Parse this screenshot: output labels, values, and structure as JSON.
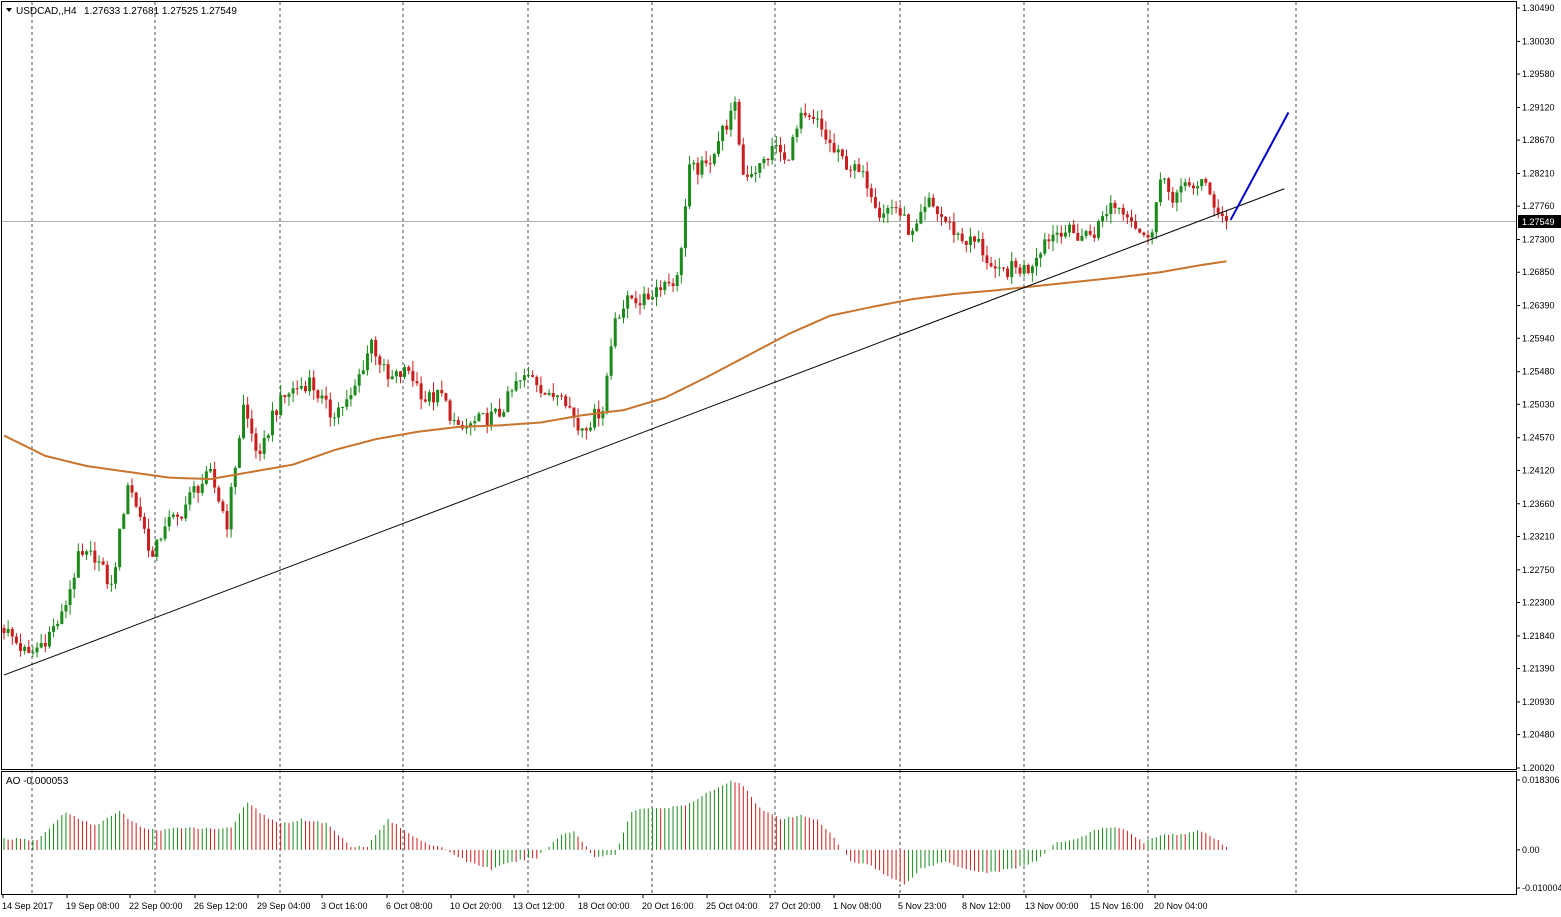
{
  "header": {
    "menu_icon": "triangle-down-icon",
    "symbol": "USDCAD,,H4",
    "ohlc": "1.27633 1.27681 1.27525 1.27549"
  },
  "chart_data": {
    "type": "candlestick",
    "symbol": "USDCAD",
    "timeframe": "H4",
    "ylim": [
      1.2002,
      1.3049
    ],
    "y_ticks": [
      "1.30490",
      "1.30030",
      "1.29580",
      "1.29120",
      "1.28670",
      "1.28210",
      "1.27760",
      "1.27300",
      "1.26850",
      "1.26390",
      "1.25940",
      "1.25480",
      "1.25030",
      "1.24570",
      "1.24120",
      "1.23660",
      "1.23210",
      "1.22750",
      "1.22300",
      "1.21840",
      "1.21390",
      "1.20930",
      "1.20480",
      "1.20020"
    ],
    "x_ticks": [
      "14 Sep 2017",
      "19 Sep 08:00",
      "22 Sep 00:00",
      "26 Sep 12:00",
      "29 Sep 04:00",
      "3 Oct 16:00",
      "6 Oct 08:00",
      "10 Oct 20:00",
      "13 Oct 12:00",
      "18 Oct 00:00",
      "20 Oct 16:00",
      "25 Oct 04:00",
      "27 Oct 20:00",
      "1 Nov 08:00",
      "5 Nov 23:00",
      "8 Nov 12:00",
      "13 Nov 00:00",
      "15 Nov 16:00",
      "20 Nov 04:00"
    ],
    "current_price": "1.27549",
    "close_anchors": [
      [
        0,
        1.2195
      ],
      [
        6,
        1.2155
      ],
      [
        10,
        1.218
      ],
      [
        14,
        1.221
      ],
      [
        18,
        1.229
      ],
      [
        22,
        1.2295
      ],
      [
        26,
        1.225
      ],
      [
        30,
        1.2395
      ],
      [
        33,
        1.235
      ],
      [
        36,
        1.229
      ],
      [
        39,
        1.234
      ],
      [
        42,
        1.2345
      ],
      [
        46,
        1.2385
      ],
      [
        50,
        1.2405
      ],
      [
        54,
        1.234
      ],
      [
        58,
        1.25
      ],
      [
        62,
        1.2425
      ],
      [
        65,
        1.249
      ],
      [
        69,
        1.252
      ],
      [
        74,
        1.2535
      ],
      [
        79,
        1.249
      ],
      [
        84,
        1.251
      ],
      [
        89,
        1.259
      ],
      [
        93,
        1.2535
      ],
      [
        98,
        1.255
      ],
      [
        102,
        1.251
      ],
      [
        106,
        1.2515
      ],
      [
        110,
        1.2465
      ],
      [
        115,
        1.248
      ],
      [
        120,
        1.249
      ],
      [
        124,
        1.253
      ],
      [
        128,
        1.2545
      ],
      [
        132,
        1.251
      ],
      [
        135,
        1.2525
      ],
      [
        139,
        1.247
      ],
      [
        142,
        1.248
      ],
      [
        145,
        1.25
      ],
      [
        148,
        1.2625
      ],
      [
        152,
        1.265
      ],
      [
        155,
        1.2645
      ],
      [
        159,
        1.267
      ],
      [
        163,
        1.2675
      ],
      [
        166,
        1.2825
      ],
      [
        170,
        1.283
      ],
      [
        174,
        1.288
      ],
      [
        177,
        1.291
      ],
      [
        179,
        1.282
      ],
      [
        183,
        1.283
      ],
      [
        187,
        1.286
      ],
      [
        189,
        1.2835
      ],
      [
        193,
        1.2895
      ],
      [
        197,
        1.289
      ],
      [
        201,
        1.285
      ],
      [
        205,
        1.283
      ],
      [
        209,
        1.281
      ],
      [
        212,
        1.277
      ],
      [
        216,
        1.2775
      ],
      [
        220,
        1.2735
      ],
      [
        224,
        1.278
      ],
      [
        228,
        1.2755
      ],
      [
        232,
        1.273
      ],
      [
        236,
        1.2725
      ],
      [
        240,
        1.268
      ],
      [
        244,
        1.269
      ],
      [
        248,
        1.269
      ],
      [
        252,
        1.273
      ],
      [
        256,
        1.2745
      ],
      [
        260,
        1.2735
      ],
      [
        264,
        1.274
      ],
      [
        268,
        1.278
      ],
      [
        272,
        1.277
      ],
      [
        276,
        1.273
      ],
      [
        278,
        1.275
      ],
      [
        280,
        1.281
      ],
      [
        283,
        1.279
      ],
      [
        286,
        1.28
      ],
      [
        290,
        1.281
      ],
      [
        293,
        1.278
      ],
      [
        296,
        1.2755
      ]
    ],
    "series": [
      {
        "name": "MA",
        "color": "#c8742c",
        "anchors": [
          [
            0,
            1.246
          ],
          [
            10,
            1.2432
          ],
          [
            20,
            1.2418
          ],
          [
            30,
            1.241
          ],
          [
            40,
            1.2402
          ],
          [
            50,
            1.24
          ],
          [
            60,
            1.241
          ],
          [
            70,
            1.242
          ],
          [
            80,
            1.244
          ],
          [
            90,
            1.2455
          ],
          [
            100,
            1.2465
          ],
          [
            110,
            1.2472
          ],
          [
            120,
            1.2474
          ],
          [
            130,
            1.2478
          ],
          [
            140,
            1.2488
          ],
          [
            150,
            1.2495
          ],
          [
            160,
            1.2512
          ],
          [
            170,
            1.254
          ],
          [
            180,
            1.257
          ],
          [
            190,
            1.26
          ],
          [
            200,
            1.2625
          ],
          [
            210,
            1.2637
          ],
          [
            220,
            1.2648
          ],
          [
            230,
            1.2655
          ],
          [
            240,
            1.266
          ],
          [
            250,
            1.2666
          ],
          [
            260,
            1.2672
          ],
          [
            270,
            1.2678
          ],
          [
            280,
            1.2685
          ],
          [
            290,
            1.2695
          ],
          [
            296,
            1.27
          ]
        ]
      },
      {
        "name": "Trend line",
        "color": "#000000",
        "anchors": [
          [
            0,
            1.213
          ],
          [
            310,
            1.28
          ]
        ]
      },
      {
        "name": "Projection",
        "color": "#0000c8",
        "anchors": [
          [
            297,
            1.2757
          ],
          [
            311,
            1.2905
          ]
        ]
      }
    ],
    "indicator": {
      "name": "AO -0.000053",
      "ylim": [
        -0.01,
        0.018306
      ],
      "y_ticks": [
        "0.018306",
        "0.00",
        "-0.010004"
      ],
      "up_color": "#1a8a1a",
      "down_color": "#c81e1e",
      "anchors": [
        [
          0,
          0.003
        ],
        [
          8,
          0.0025
        ],
        [
          15,
          0.01
        ],
        [
          18,
          0.008
        ],
        [
          22,
          0.0065
        ],
        [
          28,
          0.01
        ],
        [
          33,
          0.006
        ],
        [
          38,
          0.005
        ],
        [
          44,
          0.006
        ],
        [
          50,
          0.0055
        ],
        [
          55,
          0.006
        ],
        [
          59,
          0.0125
        ],
        [
          64,
          0.008
        ],
        [
          68,
          0.007
        ],
        [
          72,
          0.008
        ],
        [
          78,
          0.007
        ],
        [
          84,
          0.001
        ],
        [
          88,
          0.001
        ],
        [
          93,
          0.008
        ],
        [
          97,
          0.005
        ],
        [
          102,
          0.002
        ],
        [
          107,
          0.0
        ],
        [
          112,
          -0.003
        ],
        [
          118,
          -0.005
        ],
        [
          124,
          -0.003
        ],
        [
          129,
          -0.002
        ],
        [
          135,
          0.004
        ],
        [
          138,
          0.005
        ],
        [
          143,
          -0.002
        ],
        [
          148,
          -0.001
        ],
        [
          152,
          0.01
        ],
        [
          156,
          0.011
        ],
        [
          161,
          0.011
        ],
        [
          166,
          0.012
        ],
        [
          172,
          0.016
        ],
        [
          176,
          0.018
        ],
        [
          179,
          0.017
        ],
        [
          183,
          0.011
        ],
        [
          188,
          0.008
        ],
        [
          193,
          0.009
        ],
        [
          197,
          0.008
        ],
        [
          201,
          0.003
        ],
        [
          205,
          -0.003
        ],
        [
          210,
          -0.004
        ],
        [
          214,
          -0.007
        ],
        [
          218,
          -0.009
        ],
        [
          222,
          -0.005
        ],
        [
          228,
          -0.003
        ],
        [
          233,
          -0.005
        ],
        [
          238,
          -0.006
        ],
        [
          244,
          -0.005
        ],
        [
          250,
          -0.003
        ],
        [
          255,
          0.002
        ],
        [
          260,
          0.003
        ],
        [
          264,
          0.005
        ],
        [
          268,
          0.006
        ],
        [
          272,
          0.005
        ],
        [
          276,
          0.002
        ],
        [
          280,
          0.004
        ],
        [
          285,
          0.004
        ],
        [
          290,
          0.005
        ],
        [
          296,
          0.001
        ]
      ]
    }
  }
}
